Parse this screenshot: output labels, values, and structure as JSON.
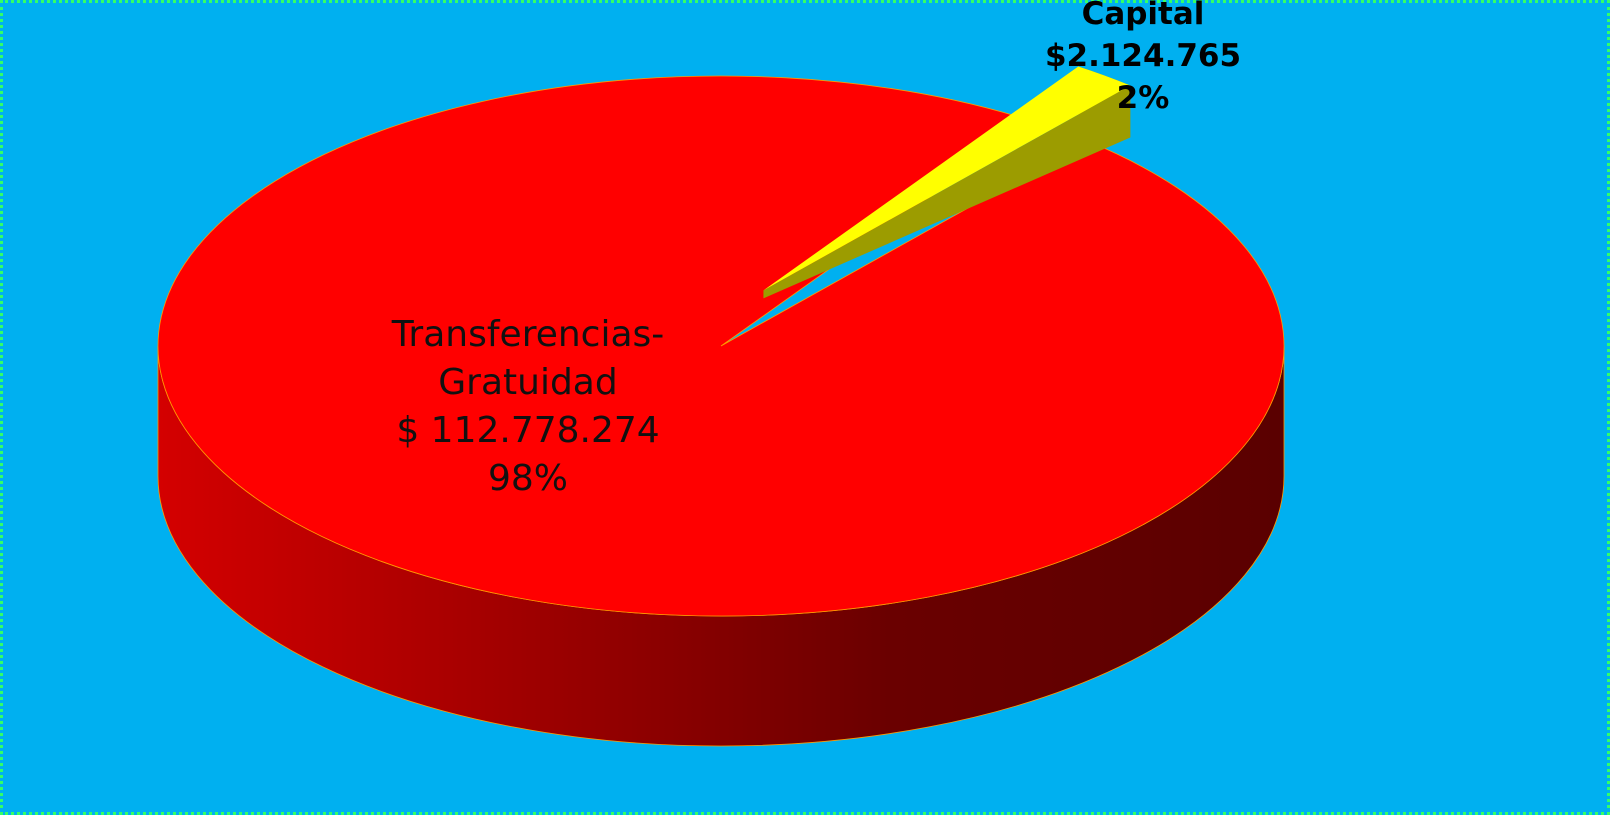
{
  "chart_data": {
    "type": "pie3d",
    "categories": [
      "Transferencias-Gratuidad",
      "Capital"
    ],
    "values": [
      112778274,
      2124765
    ],
    "value_labels": [
      "$ 112.778.274",
      "$2.124.765"
    ],
    "percents": [
      98,
      2
    ],
    "percent_labels": [
      "98%",
      "2%"
    ],
    "colors": [
      "#ff0000",
      "#ffff00"
    ],
    "explode": [
      false,
      true
    ]
  }
}
